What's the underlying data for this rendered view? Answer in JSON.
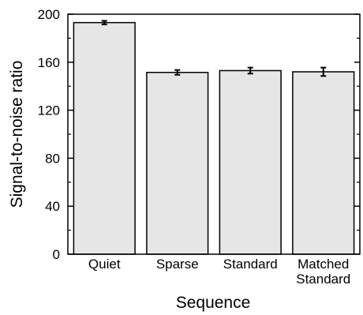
{
  "chart_data": {
    "type": "bar",
    "categories": [
      "Quiet",
      "Sparse",
      "Standard",
      "Matched Standard"
    ],
    "category_lines": [
      [
        "Quiet"
      ],
      [
        "Sparse"
      ],
      [
        "Standard"
      ],
      [
        "Matched",
        "Standard"
      ]
    ],
    "values": [
      193,
      151.5,
      153,
      152
    ],
    "errors": [
      1.5,
      2,
      2.5,
      3.5
    ],
    "xlabel": "Sequence",
    "ylabel": "Signal-to-noise ratio",
    "ylim": [
      0,
      200
    ],
    "yticks": [
      0,
      40,
      80,
      120,
      160,
      200
    ],
    "yticks_minor": [
      20,
      60,
      100,
      140,
      180
    ],
    "bar_color": "#e6e6e6",
    "edge_color": "#000000",
    "grid": false,
    "legend": "none"
  }
}
